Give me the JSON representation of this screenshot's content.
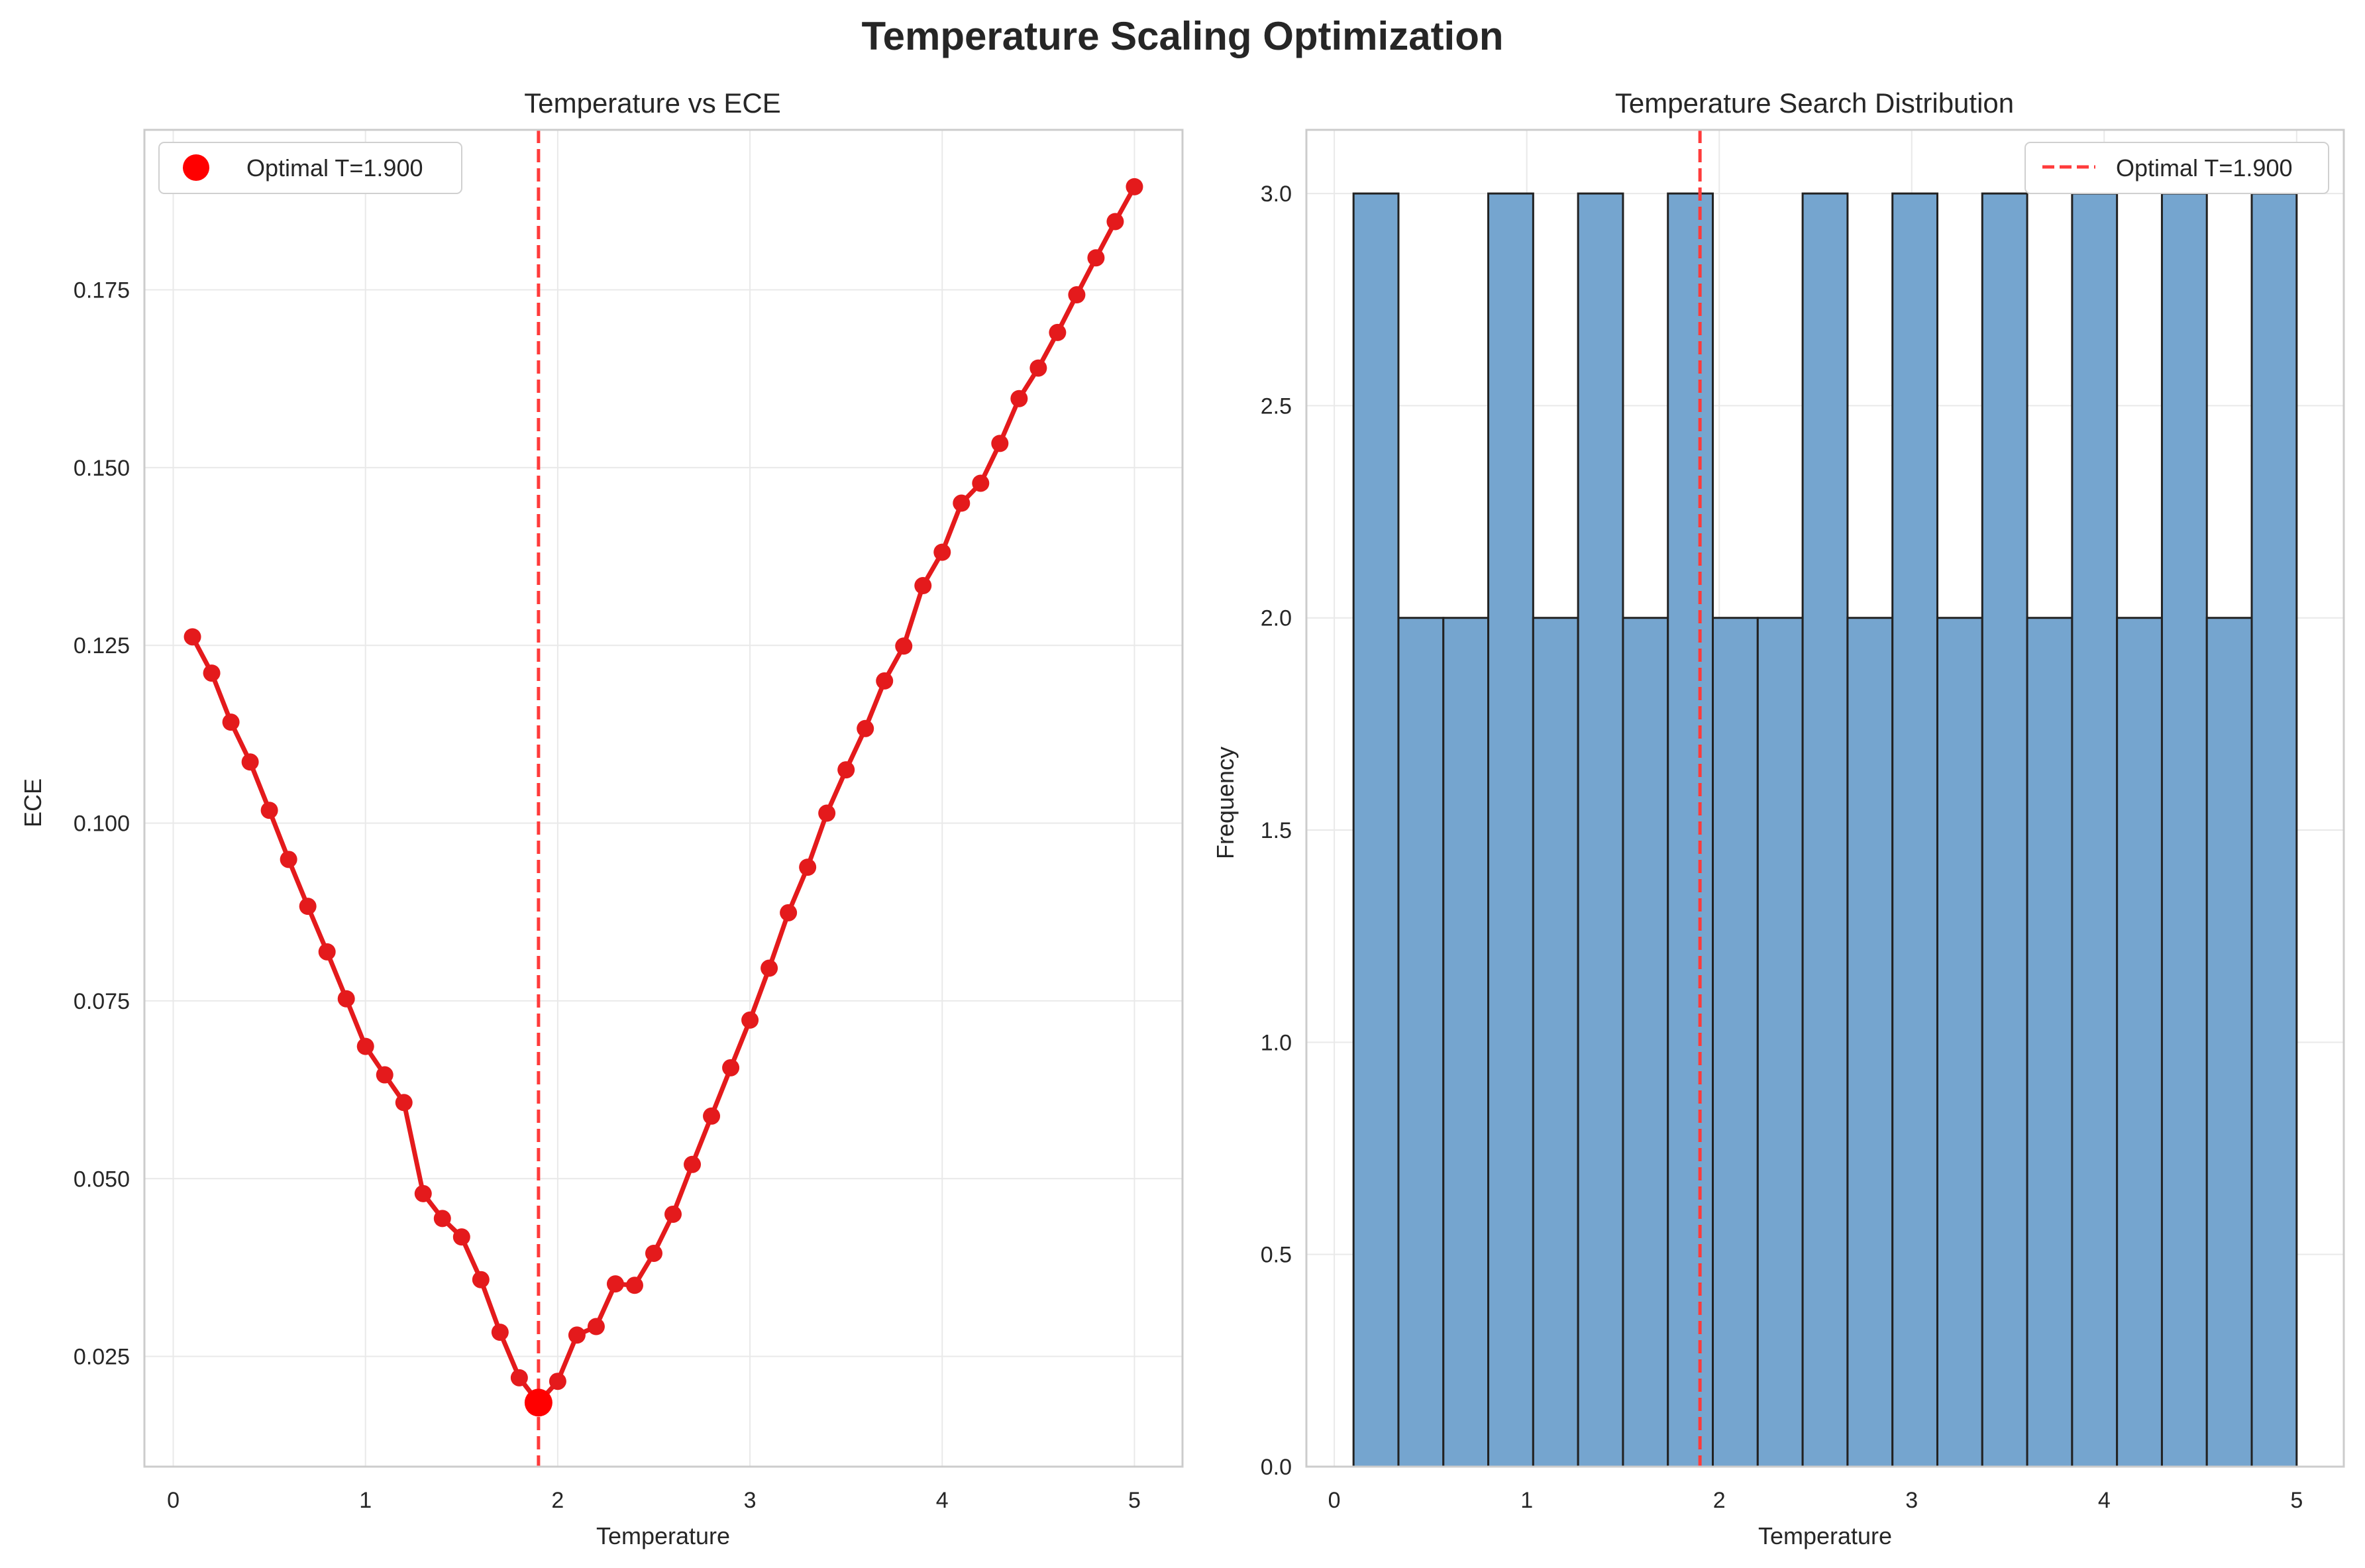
{
  "figure": {
    "title": "Temperature Scaling Optimization"
  },
  "colors": {
    "line": "#e41a1c",
    "optimal_marker": "#ff0000",
    "optimal_line": "#ff3b3b",
    "bar_fill": "#75a5cf",
    "bar_edge": "#222222",
    "grid": "#e9e9e9",
    "spine": "#cccccc",
    "text": "#262626"
  },
  "chart_data": [
    {
      "type": "line",
      "title": "Temperature vs ECE",
      "xlabel": "Temperature",
      "ylabel": "ECE",
      "xlim": [
        -0.15,
        5.25
      ],
      "ylim": [
        0.0095,
        0.1975
      ],
      "xticks": [
        0,
        1,
        2,
        3,
        4,
        5
      ],
      "xtick_labels": [
        "0",
        "1",
        "2",
        "3",
        "4",
        "5"
      ],
      "yticks": [
        0.025,
        0.05,
        0.075,
        0.1,
        0.125,
        0.15,
        0.175
      ],
      "ytick_labels": [
        "0.025",
        "0.050",
        "0.075",
        "0.100",
        "0.125",
        "0.150",
        "0.175"
      ],
      "grid": true,
      "legend_position": "upper-left",
      "legend": [
        "Optimal T=1.900"
      ],
      "optimal": {
        "x": 1.9,
        "y": 0.0185
      },
      "series": [
        {
          "x": [
            0.1,
            0.2,
            0.3,
            0.4,
            0.5,
            0.6,
            0.7,
            0.8,
            0.9,
            1.0,
            1.1,
            1.2,
            1.3,
            1.4,
            1.5,
            1.6,
            1.7,
            1.8,
            1.9,
            2.0,
            2.1,
            2.2,
            2.3,
            2.4,
            2.5,
            2.6,
            2.7,
            2.8,
            2.9,
            3.0,
            3.1,
            3.2,
            3.3,
            3.4,
            3.5,
            3.6,
            3.7,
            3.8,
            3.9,
            4.0,
            4.1,
            4.2,
            4.3,
            4.4,
            4.5,
            4.6,
            4.7,
            4.8,
            4.9,
            5.0
          ],
          "y": [
            0.1262,
            0.1211,
            0.1142,
            0.1086,
            0.1018,
            0.0949,
            0.0883,
            0.0819,
            0.0753,
            0.0686,
            0.0646,
            0.0607,
            0.0479,
            0.0444,
            0.0418,
            0.0358,
            0.0284,
            0.022,
            0.0185,
            0.0215,
            0.028,
            0.0292,
            0.0352,
            0.035,
            0.0395,
            0.045,
            0.052,
            0.0588,
            0.0656,
            0.0723,
            0.0796,
            0.0874,
            0.0938,
            0.1014,
            0.1075,
            0.1133,
            0.12,
            0.1249,
            0.1334,
            0.1381,
            0.145,
            0.1478,
            0.1534,
            0.1597,
            0.164,
            0.169,
            0.1743,
            0.1795,
            0.1846,
            0.1895
          ]
        }
      ]
    },
    {
      "type": "bar",
      "title": "Temperature Search Distribution",
      "xlabel": "Temperature",
      "ylabel": "Frequency",
      "xlim": [
        -0.145,
        5.245
      ],
      "ylim": [
        0,
        3.15
      ],
      "xticks": [
        0,
        1,
        2,
        3,
        4,
        5
      ],
      "xtick_labels": [
        "0",
        "1",
        "2",
        "3",
        "4",
        "5"
      ],
      "yticks": [
        0,
        0.5,
        1.0,
        1.5,
        2.0,
        2.5,
        3.0
      ],
      "ytick_labels": [
        "0.0",
        "0.5",
        "1.0",
        "1.5",
        "2.0",
        "2.5",
        "3.0"
      ],
      "grid": true,
      "legend_position": "upper-right",
      "legend": [
        "Optimal T=1.900"
      ],
      "optimal_x": 1.9,
      "bin_start": 0.1,
      "bin_end": 5.0,
      "values": [
        3,
        2,
        2,
        3,
        2,
        3,
        2,
        3,
        2,
        2,
        3,
        2,
        3,
        2,
        3,
        2,
        3,
        2,
        3,
        2,
        3
      ]
    }
  ]
}
